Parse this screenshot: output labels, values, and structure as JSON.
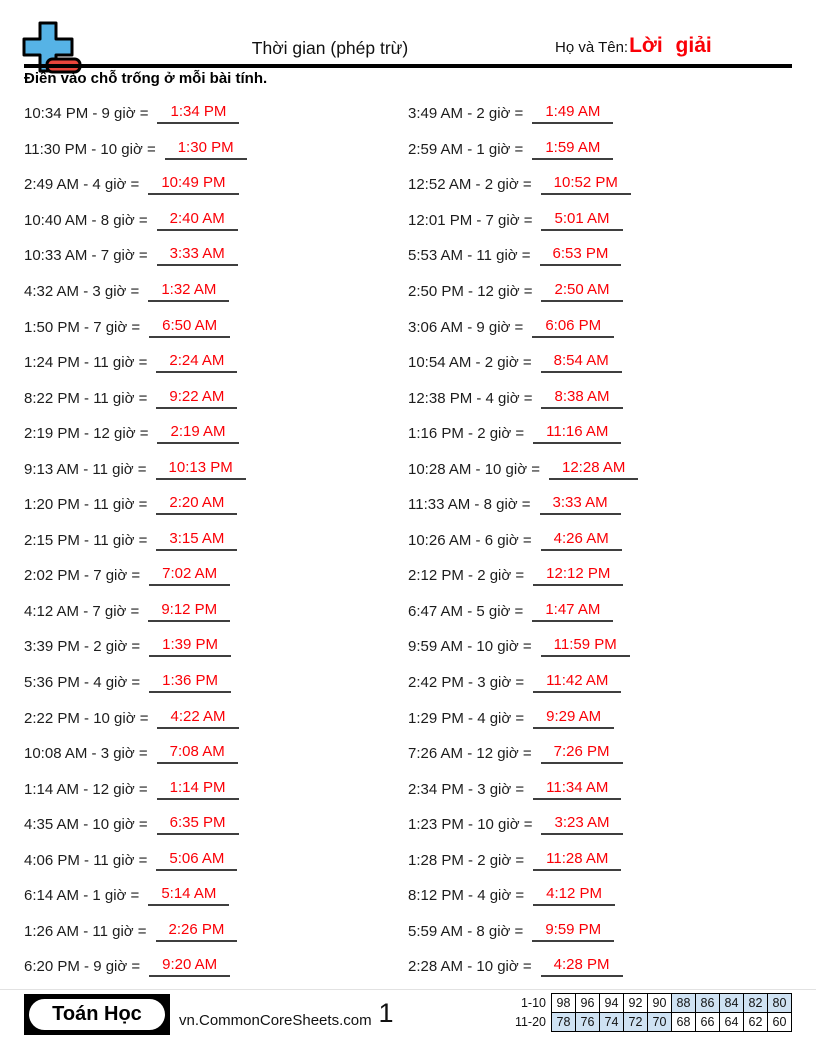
{
  "header": {
    "title": "Thời gian (phép trừ)",
    "name_label": "Họ và Tên:",
    "name_value": "Lời giải"
  },
  "instruction": "Điền vào chỗ trống ở mỗi bài tính.",
  "colors": {
    "answer_red": "#fa0007",
    "cell_blue": "#cfe2f3",
    "logo_blue": "#56b3e6",
    "logo_red": "#e8453c"
  },
  "problems_left": [
    {
      "q": "10:34 PM - 9 giờ =",
      "a": "1:34 PM"
    },
    {
      "q": "11:30 PM - 10 giờ =",
      "a": "1:30 PM"
    },
    {
      "q": "2:49 AM - 4 giờ =",
      "a": "10:49 PM"
    },
    {
      "q": "10:40 AM - 8 giờ =",
      "a": "2:40 AM"
    },
    {
      "q": "10:33 AM - 7 giờ =",
      "a": "3:33 AM"
    },
    {
      "q": "4:32 AM - 3 giờ =",
      "a": "1:32 AM"
    },
    {
      "q": "1:50 PM - 7 giờ =",
      "a": "6:50 AM"
    },
    {
      "q": "1:24 PM - 11 giờ =",
      "a": "2:24 AM"
    },
    {
      "q": "8:22 PM - 11 giờ =",
      "a": "9:22 AM"
    },
    {
      "q": "2:19 PM - 12 giờ =",
      "a": "2:19 AM"
    },
    {
      "q": "9:13 AM - 11 giờ =",
      "a": "10:13 PM"
    },
    {
      "q": "1:20 PM - 11 giờ =",
      "a": "2:20 AM"
    },
    {
      "q": "2:15 PM - 11 giờ =",
      "a": "3:15 AM"
    },
    {
      "q": "2:02 PM - 7 giờ =",
      "a": "7:02 AM"
    },
    {
      "q": "4:12 AM - 7 giờ =",
      "a": "9:12 PM"
    },
    {
      "q": "3:39 PM - 2 giờ =",
      "a": "1:39 PM"
    },
    {
      "q": "5:36 PM - 4 giờ =",
      "a": "1:36 PM"
    },
    {
      "q": "2:22 PM - 10 giờ =",
      "a": "4:22 AM"
    },
    {
      "q": "10:08 AM - 3 giờ =",
      "a": "7:08 AM"
    },
    {
      "q": "1:14 AM - 12 giờ =",
      "a": "1:14 PM"
    },
    {
      "q": "4:35 AM - 10 giờ =",
      "a": "6:35 PM"
    },
    {
      "q": "4:06 PM - 11 giờ =",
      "a": "5:06 AM"
    },
    {
      "q": "6:14 AM - 1 giờ =",
      "a": "5:14 AM"
    },
    {
      "q": "1:26 AM - 11 giờ =",
      "a": "2:26 PM"
    },
    {
      "q": "6:20 PM - 9 giờ =",
      "a": "9:20 AM"
    }
  ],
  "problems_right": [
    {
      "q": "3:49 AM - 2 giờ =",
      "a": "1:49 AM"
    },
    {
      "q": "2:59 AM - 1 giờ =",
      "a": "1:59 AM"
    },
    {
      "q": "12:52 AM - 2 giờ =",
      "a": "10:52 PM"
    },
    {
      "q": "12:01 PM - 7 giờ =",
      "a": "5:01 AM"
    },
    {
      "q": "5:53 AM - 11 giờ =",
      "a": "6:53 PM"
    },
    {
      "q": "2:50 PM - 12 giờ =",
      "a": "2:50 AM"
    },
    {
      "q": "3:06 AM - 9 giờ =",
      "a": "6:06 PM"
    },
    {
      "q": "10:54 AM - 2 giờ =",
      "a": "8:54 AM"
    },
    {
      "q": "12:38 PM - 4 giờ =",
      "a": "8:38 AM"
    },
    {
      "q": "1:16 PM - 2 giờ =",
      "a": "11:16 AM"
    },
    {
      "q": "10:28 AM - 10 giờ =",
      "a": "12:28 AM"
    },
    {
      "q": "11:33 AM - 8 giờ =",
      "a": "3:33 AM"
    },
    {
      "q": "10:26 AM - 6 giờ =",
      "a": "4:26 AM"
    },
    {
      "q": "2:12 PM - 2 giờ =",
      "a": "12:12 PM"
    },
    {
      "q": "6:47 AM - 5 giờ =",
      "a": "1:47 AM"
    },
    {
      "q": "9:59 AM - 10 giờ =",
      "a": "11:59 PM"
    },
    {
      "q": "2:42 PM - 3 giờ =",
      "a": "11:42 AM"
    },
    {
      "q": "1:29 PM - 4 giờ =",
      "a": "9:29 AM"
    },
    {
      "q": "7:26 AM - 12 giờ =",
      "a": "7:26 PM"
    },
    {
      "q": "2:34 PM - 3 giờ =",
      "a": "11:34 AM"
    },
    {
      "q": "1:23 PM - 10 giờ =",
      "a": "3:23 AM"
    },
    {
      "q": "1:28 PM - 2 giờ =",
      "a": "11:28 AM"
    },
    {
      "q": "8:12 PM - 4 giờ =",
      "a": "4:12 PM"
    },
    {
      "q": "5:59 AM - 8 giờ =",
      "a": "9:59 PM"
    },
    {
      "q": "2:28 AM - 10 giờ =",
      "a": "4:28 PM"
    }
  ],
  "footer": {
    "badge": "Toán Học",
    "site": "vn.CommonCoreSheets.com",
    "page": "1",
    "score_table": {
      "rows": [
        {
          "label": "1-10",
          "cells": [
            {
              "v": "98",
              "blue": false
            },
            {
              "v": "96",
              "blue": false
            },
            {
              "v": "94",
              "blue": false
            },
            {
              "v": "92",
              "blue": false
            },
            {
              "v": "90",
              "blue": false
            },
            {
              "v": "88",
              "blue": true
            },
            {
              "v": "86",
              "blue": true
            },
            {
              "v": "84",
              "blue": true
            },
            {
              "v": "82",
              "blue": true
            },
            {
              "v": "80",
              "blue": true
            }
          ]
        },
        {
          "label": "11-20",
          "cells": [
            {
              "v": "78",
              "blue": true
            },
            {
              "v": "76",
              "blue": true
            },
            {
              "v": "74",
              "blue": true
            },
            {
              "v": "72",
              "blue": true
            },
            {
              "v": "70",
              "blue": true
            },
            {
              "v": "68",
              "blue": false
            },
            {
              "v": "66",
              "blue": false
            },
            {
              "v": "64",
              "blue": false
            },
            {
              "v": "62",
              "blue": false
            },
            {
              "v": "60",
              "blue": false
            }
          ]
        }
      ]
    }
  }
}
